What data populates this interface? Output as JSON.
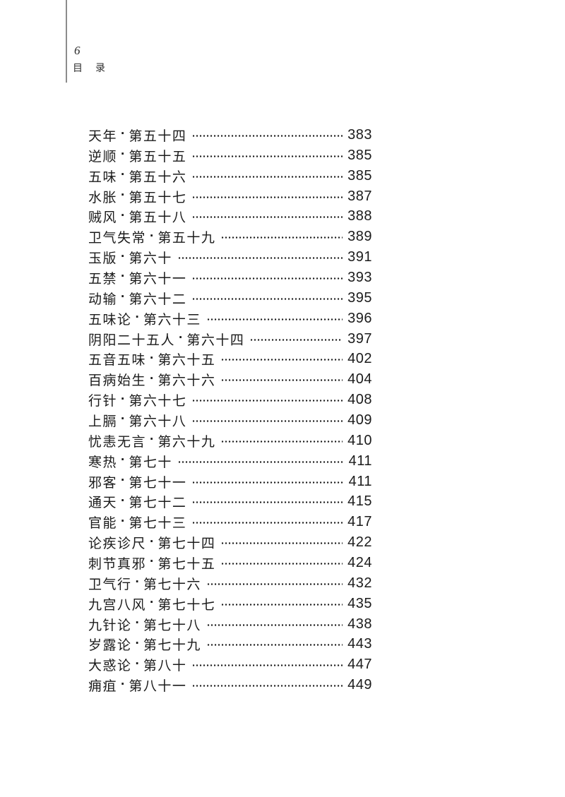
{
  "header": {
    "folio_number": "6",
    "running_title": "目　录",
    "rule_color": "#8c8c8c"
  },
  "toc": {
    "separator": "·",
    "entries": [
      {
        "title": "天年",
        "chapter": "第五十四",
        "page": "383"
      },
      {
        "title": "逆顺",
        "chapter": "第五十五",
        "page": "385"
      },
      {
        "title": "五味",
        "chapter": "第五十六",
        "page": "385"
      },
      {
        "title": "水胀",
        "chapter": "第五十七",
        "page": "387"
      },
      {
        "title": "贼风",
        "chapter": "第五十八",
        "page": "388"
      },
      {
        "title": "卫气失常",
        "chapter": "第五十九",
        "page": "389"
      },
      {
        "title": "玉版",
        "chapter": "第六十",
        "page": "391"
      },
      {
        "title": "五禁",
        "chapter": "第六十一",
        "page": "393"
      },
      {
        "title": "动输",
        "chapter": "第六十二",
        "page": "395"
      },
      {
        "title": "五味论",
        "chapter": "第六十三",
        "page": "396"
      },
      {
        "title": "阴阳二十五人",
        "chapter": "第六十四",
        "page": "397"
      },
      {
        "title": "五音五味",
        "chapter": "第六十五",
        "page": "402"
      },
      {
        "title": "百病始生",
        "chapter": "第六十六",
        "page": "404"
      },
      {
        "title": "行针",
        "chapter": "第六十七",
        "page": "408"
      },
      {
        "title": "上膈",
        "chapter": "第六十八",
        "page": "409"
      },
      {
        "title": "忧恚无言",
        "chapter": "第六十九",
        "page": "410"
      },
      {
        "title": "寒热",
        "chapter": "第七十",
        "page": "411"
      },
      {
        "title": "邪客",
        "chapter": "第七十一",
        "page": "411"
      },
      {
        "title": "通天",
        "chapter": "第七十二",
        "page": "415"
      },
      {
        "title": "官能",
        "chapter": "第七十三",
        "page": "417"
      },
      {
        "title": "论疾诊尺",
        "chapter": "第七十四",
        "page": "422"
      },
      {
        "title": "刺节真邪",
        "chapter": "第七十五",
        "page": "424"
      },
      {
        "title": "卫气行",
        "chapter": "第七十六",
        "page": "432"
      },
      {
        "title": "九宫八风",
        "chapter": "第七十七",
        "page": "435"
      },
      {
        "title": "九针论",
        "chapter": "第七十八",
        "page": "438"
      },
      {
        "title": "岁露论",
        "chapter": "第七十九",
        "page": "443"
      },
      {
        "title": "大惑论",
        "chapter": "第八十",
        "page": "447"
      },
      {
        "title": "痈疽",
        "chapter": "第八十一",
        "page": "449"
      }
    ]
  }
}
